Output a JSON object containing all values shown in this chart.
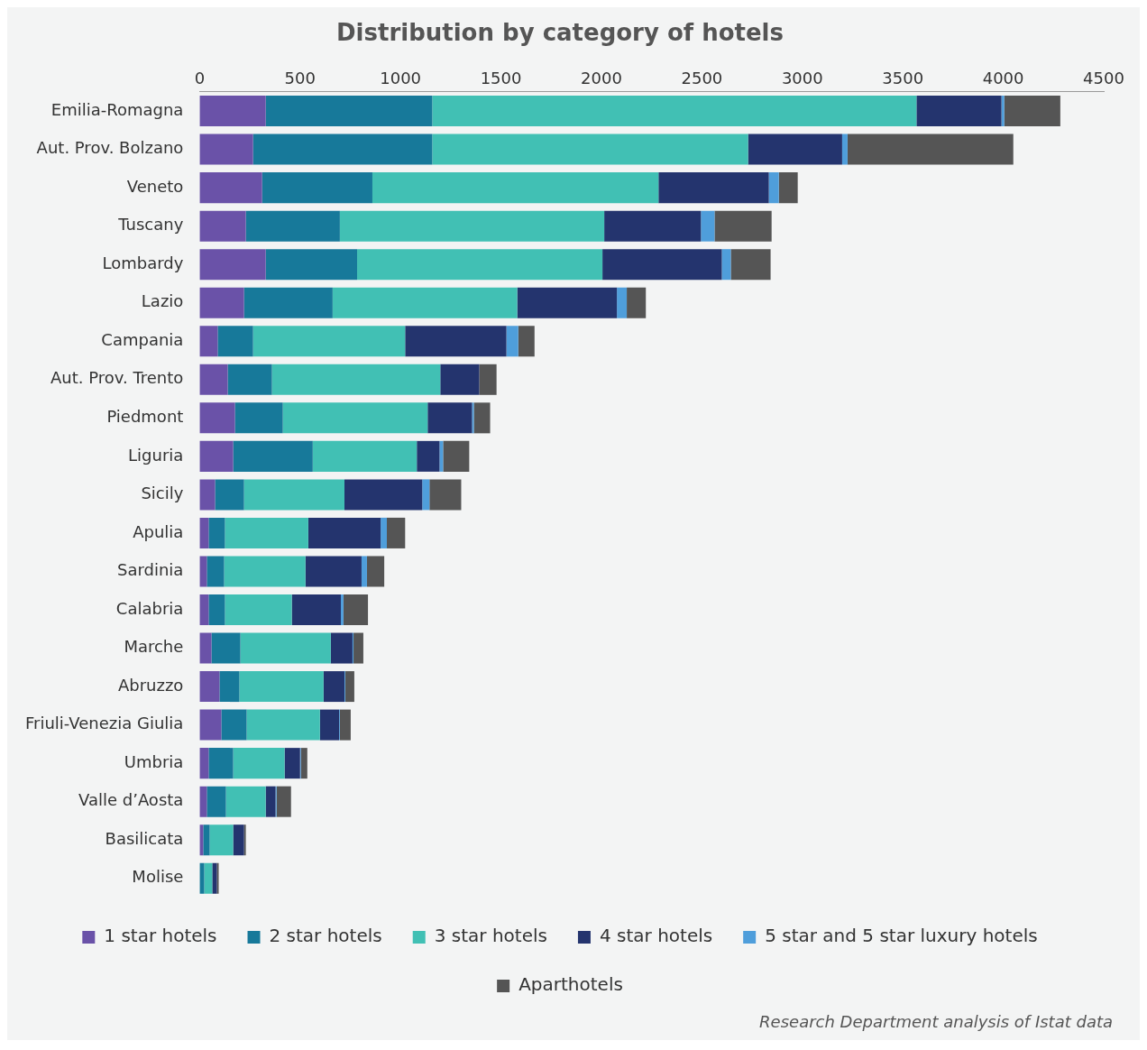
{
  "chart_data": {
    "type": "bar",
    "orientation": "horizontal",
    "stacked": true,
    "title": "Distribution by category of hotels",
    "categories": [
      "Emilia-Romagna",
      "Aut. Prov. Bolzano",
      "Veneto",
      "Tuscany",
      "Lombardy",
      "Lazio",
      "Campania",
      "Aut. Prov. Trento",
      "Piedmont",
      "Liguria",
      "Sicily",
      "Apulia",
      "Sardinia",
      "Calabria",
      "Marche",
      "Abruzzo",
      "Friuli-Venezia Giulia",
      "Umbria",
      "Valle d’Aosta",
      "Basilicata",
      "Molise"
    ],
    "series": [
      {
        "name": "1 star hotels",
        "color": "#6a52a8",
        "values": [
          329,
          266,
          311,
          230,
          329,
          221,
          90,
          140,
          176,
          167,
          77,
          45,
          36,
          45,
          59,
          99,
          108,
          45,
          36,
          18,
          null
        ]
      },
      {
        "name": "2 star hotels",
        "color": "#17799a",
        "values": [
          829,
          892,
          549,
          468,
          455,
          441,
          176,
          220,
          238,
          396,
          144,
          81,
          86,
          81,
          144,
          99,
          126,
          122,
          95,
          32,
          23
        ]
      },
      {
        "name": "3 star hotels",
        "color": "#41c0b4",
        "values": [
          2410,
          1572,
          1424,
          1316,
          1221,
          919,
          757,
          838,
          721,
          518,
          500,
          415,
          405,
          333,
          450,
          419,
          365,
          256,
          198,
          117,
          40
        ]
      },
      {
        "name": "4 star hotels",
        "color": "#24346e",
        "values": [
          423,
          468,
          549,
          481,
          594,
          496,
          504,
          194,
          221,
          113,
          387,
          360,
          279,
          244,
          108,
          104,
          95,
          77,
          49,
          54,
          23
        ]
      },
      {
        "name": "5 star and 5 star luxury hotels",
        "color": "#4f9edb",
        "values": [
          14,
          27,
          50,
          68,
          45,
          49,
          59,
          null,
          9,
          18,
          36,
          31,
          27,
          13,
          5,
          4,
          4,
          4,
          5,
          null,
          0
        ]
      },
      {
        "name": "Aparthotels",
        "color": "#555555",
        "values": [
          279,
          825,
          94,
          284,
          198,
          95,
          81,
          86,
          81,
          130,
          158,
          91,
          86,
          122,
          49,
          45,
          54,
          32,
          72,
          9,
          9
        ]
      }
    ],
    "xlim": [
      0,
      4500
    ],
    "xticks": [
      0,
      500,
      1000,
      1500,
      2000,
      2500,
      3000,
      3500,
      4000,
      4500
    ],
    "grid": false,
    "legend": "bottom",
    "annotations": [
      "Research Department analysis of Istat data"
    ]
  }
}
